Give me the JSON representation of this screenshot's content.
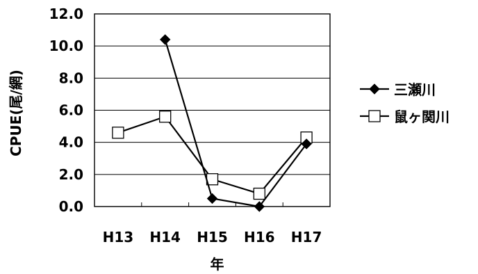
{
  "chart_data": {
    "type": "line",
    "title": "",
    "xlabel": "年",
    "ylabel": "CPUE(尾/網)",
    "categories": [
      "H13",
      "H14",
      "H15",
      "H16",
      "H17"
    ],
    "ylim": [
      0,
      12
    ],
    "ytick_labels": [
      "0.0",
      "2.0",
      "4.0",
      "6.0",
      "8.0",
      "10.0",
      "12.0"
    ],
    "grid": "horizontal",
    "legend_position": "right",
    "series": [
      {
        "name": "三瀬川",
        "marker": "filled-diamond",
        "values": [
          null,
          10.4,
          0.5,
          0.0,
          3.9
        ]
      },
      {
        "name": "鼠ヶ関川",
        "marker": "open-square",
        "values": [
          4.6,
          5.6,
          1.7,
          0.8,
          4.3
        ]
      }
    ]
  }
}
